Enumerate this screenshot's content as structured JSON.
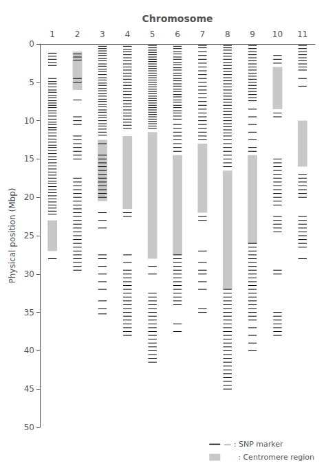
{
  "chart_data": {
    "type": "ideogram",
    "title": "Chromosome",
    "ylabel": "Physical position (Mbp)",
    "categories": [
      "1",
      "2",
      "3",
      "4",
      "5",
      "6",
      "7",
      "8",
      "9",
      "10",
      "11"
    ],
    "ylim": [
      50,
      0
    ],
    "yticks": [
      0,
      5,
      10,
      15,
      20,
      25,
      30,
      35,
      40,
      45,
      50
    ],
    "grid": false,
    "legend": "lower right",
    "series": [
      {
        "name": "— : SNP marker",
        "type": "tick",
        "color": "#000000",
        "values": [
          [
            1.2,
            1.6,
            2.0,
            2.4,
            2.8,
            4.5,
            4.9,
            5.2,
            5.6,
            6.0,
            6.3,
            6.7,
            7.0,
            7.4,
            7.7,
            8.0,
            8.3,
            8.7,
            9.0,
            9.4,
            9.8,
            10.2,
            10.5,
            10.9,
            11.2,
            11.6,
            12.0,
            12.4,
            12.8,
            13.2,
            13.5,
            13.9,
            14.3,
            14.7,
            15.1,
            15.5,
            15.9,
            16.3,
            16.7,
            17.1,
            17.5,
            17.9,
            18.2,
            18.6,
            19.0,
            19.4,
            19.8,
            20.2,
            20.6,
            21.0,
            21.4,
            21.8,
            22.2,
            28.0
          ],
          [
            1.3,
            1.7,
            2.1,
            4.5,
            5.0,
            7.3,
            9.5,
            10.0,
            10.5,
            12.0,
            12.5,
            13.0,
            13.5,
            14.0,
            14.5,
            15.0,
            17.5,
            18.0,
            18.5,
            19.0,
            19.5,
            20.0,
            20.5,
            21.0,
            21.5,
            22.0,
            22.5,
            23.0,
            23.5,
            24.0,
            24.5,
            25.0,
            25.5,
            26.0,
            26.5,
            27.0,
            27.5,
            28.0,
            28.5,
            29.0,
            29.5
          ],
          [
            0.3,
            0.6,
            0.9,
            1.2,
            1.5,
            1.9,
            2.2,
            2.6,
            2.9,
            3.3,
            3.6,
            4.0,
            4.4,
            4.7,
            5.1,
            5.4,
            5.8,
            6.1,
            6.5,
            6.8,
            7.2,
            7.5,
            7.9,
            8.2,
            8.6,
            8.9,
            9.3,
            9.6,
            10.0,
            10.4,
            10.7,
            11.1,
            11.5,
            11.9,
            13.0,
            14.5,
            15.0,
            15.5,
            16.0,
            16.5,
            17.0,
            17.5,
            18.0,
            18.5,
            19.0,
            19.5,
            20.0,
            22.0,
            23.0,
            24.0,
            27.5,
            28.0,
            29.0,
            30.0,
            31.0,
            32.0,
            33.5,
            34.5,
            35.2
          ],
          [
            0.3,
            0.7,
            1.0,
            1.4,
            1.8,
            2.2,
            2.6,
            3.0,
            3.4,
            3.8,
            4.2,
            4.6,
            5.0,
            5.4,
            5.8,
            6.2,
            6.6,
            7.0,
            7.4,
            7.8,
            8.2,
            8.6,
            9.0,
            9.4,
            9.8,
            10.2,
            10.6,
            11.0,
            22.0,
            22.5,
            27.5,
            28.5,
            29.5,
            30.0,
            30.5,
            31.0,
            31.5,
            32.0,
            32.5,
            33.0,
            33.5,
            34.0,
            34.5,
            35.0,
            35.5,
            36.0,
            36.5,
            37.0,
            37.5,
            38.0
          ],
          [
            0.2,
            0.5,
            0.8,
            1.1,
            1.4,
            1.7,
            2.0,
            2.3,
            2.6,
            2.9,
            3.2,
            3.5,
            3.8,
            4.1,
            4.4,
            4.7,
            5.0,
            5.3,
            5.6,
            5.9,
            6.2,
            6.5,
            6.8,
            7.1,
            7.4,
            7.7,
            8.0,
            8.3,
            8.6,
            8.9,
            9.2,
            9.5,
            9.8,
            10.1,
            10.4,
            10.7,
            11.0,
            29.0,
            30.0,
            32.5,
            33.0,
            33.5,
            34.0,
            34.5,
            35.0,
            35.5,
            36.0,
            36.5,
            37.0,
            37.5,
            38.0,
            38.5,
            39.0,
            39.5,
            40.0,
            40.5,
            41.0,
            41.5
          ],
          [
            0.3,
            0.6,
            1.0,
            1.3,
            1.7,
            2.0,
            2.4,
            2.7,
            3.1,
            3.4,
            3.8,
            4.1,
            4.5,
            4.8,
            5.2,
            5.5,
            5.9,
            6.2,
            6.6,
            6.9,
            7.3,
            7.6,
            8.0,
            8.3,
            8.7,
            9.0,
            9.4,
            9.8,
            10.5,
            11.0,
            11.5,
            12.0,
            12.5,
            13.0,
            13.5,
            14.0,
            27.5,
            28.0,
            28.5,
            29.0,
            29.5,
            30.0,
            30.5,
            31.0,
            31.5,
            32.0,
            32.5,
            33.0,
            33.5,
            34.0,
            36.5,
            37.5
          ],
          [
            0.2,
            0.5,
            1.0,
            1.5,
            2.0,
            2.5,
            3.0,
            3.5,
            4.0,
            4.5,
            5.0,
            5.5,
            6.0,
            6.5,
            7.0,
            7.5,
            8.0,
            8.5,
            9.0,
            9.5,
            10.0,
            10.5,
            11.0,
            11.5,
            12.0,
            12.5,
            22.5,
            23.0,
            27.0,
            28.5,
            29.5,
            30.0,
            31.0,
            32.0,
            34.5,
            35.0
          ],
          [
            0.2,
            0.5,
            0.8,
            1.2,
            1.6,
            2.0,
            2.4,
            2.8,
            3.2,
            3.6,
            4.0,
            4.4,
            4.8,
            5.2,
            5.6,
            6.0,
            6.4,
            6.8,
            7.2,
            7.6,
            8.0,
            8.4,
            8.8,
            9.2,
            9.6,
            10.0,
            10.4,
            10.8,
            11.2,
            11.6,
            12.0,
            12.5,
            13.0,
            13.5,
            14.0,
            14.5,
            15.0,
            15.5,
            16.0,
            32.0,
            32.5,
            33.0,
            33.5,
            34.0,
            34.5,
            35.0,
            35.5,
            36.0,
            36.5,
            37.0,
            37.5,
            38.0,
            38.5,
            39.0,
            39.5,
            40.0,
            40.5,
            41.0,
            41.5,
            42.0,
            42.5,
            43.0,
            43.5,
            44.0,
            44.5,
            45.0
          ],
          [
            0.2,
            0.6,
            1.0,
            1.4,
            1.8,
            2.2,
            2.6,
            3.0,
            3.4,
            3.8,
            4.2,
            4.6,
            5.0,
            5.4,
            5.8,
            6.2,
            6.6,
            7.0,
            7.4,
            8.5,
            9.5,
            10.5,
            11.5,
            12.5,
            13.5,
            14.0,
            26.0,
            26.5,
            27.0,
            27.5,
            28.0,
            28.5,
            29.0,
            29.5,
            30.0,
            30.5,
            31.0,
            31.5,
            32.0,
            32.5,
            33.0,
            33.5,
            34.0,
            34.5,
            35.0,
            35.5,
            36.0,
            37.0,
            38.0,
            39.0,
            40.0
          ],
          [
            1.5,
            2.0,
            2.5,
            9.0,
            9.5,
            15.0,
            15.5,
            16.0,
            16.5,
            17.0,
            17.5,
            18.0,
            18.5,
            19.0,
            19.5,
            20.0,
            20.5,
            21.0,
            22.5,
            23.0,
            23.5,
            24.0,
            24.5,
            29.5,
            30.0,
            35.0,
            35.5,
            36.0,
            36.5,
            37.0,
            37.5,
            38.0
          ],
          [
            0.2,
            0.6,
            1.0,
            1.4,
            1.8,
            2.2,
            2.6,
            3.0,
            3.4,
            4.5,
            5.5,
            17.0,
            17.5,
            18.0,
            18.5,
            19.0,
            19.5,
            20.0,
            22.5,
            23.0,
            23.5,
            24.0,
            24.5,
            25.0,
            25.5,
            26.0,
            26.5,
            28.0
          ]
        ]
      },
      {
        "name": "      : Centromere region",
        "type": "range",
        "color": "#c8c8c8",
        "values": [
          [
            23.0,
            27.0
          ],
          [
            1.0,
            6.0
          ],
          [
            12.5,
            20.5
          ],
          [
            12.0,
            21.5
          ],
          [
            11.5,
            28.0
          ],
          [
            14.5,
            27.5
          ],
          [
            13.0,
            22.0
          ],
          [
            16.5,
            32.0
          ],
          [
            14.5,
            26.0
          ],
          [
            3.0,
            8.5
          ],
          [
            10.0,
            16.0
          ]
        ]
      }
    ]
  }
}
